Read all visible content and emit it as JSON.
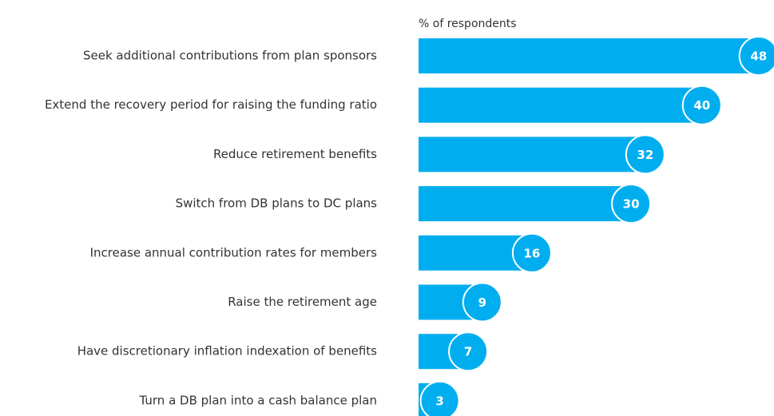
{
  "chart_data": {
    "type": "barh",
    "axis_label": "% of respondents",
    "categories": [
      "Seek additional contributions from plan sponsors",
      "Extend the recovery period for raising the funding ratio",
      "Reduce retirement benefits",
      "Switch from DB plans to DC plans",
      "Increase annual contribution rates for members",
      "Raise the retirement age",
      "Have discretionary inflation indexation of benefits",
      "Turn a DB plan into a cash balance plan"
    ],
    "values": [
      48,
      40,
      32,
      30,
      16,
      9,
      7,
      3
    ],
    "color": "#00aeef",
    "xlim": [
      0,
      50
    ]
  }
}
